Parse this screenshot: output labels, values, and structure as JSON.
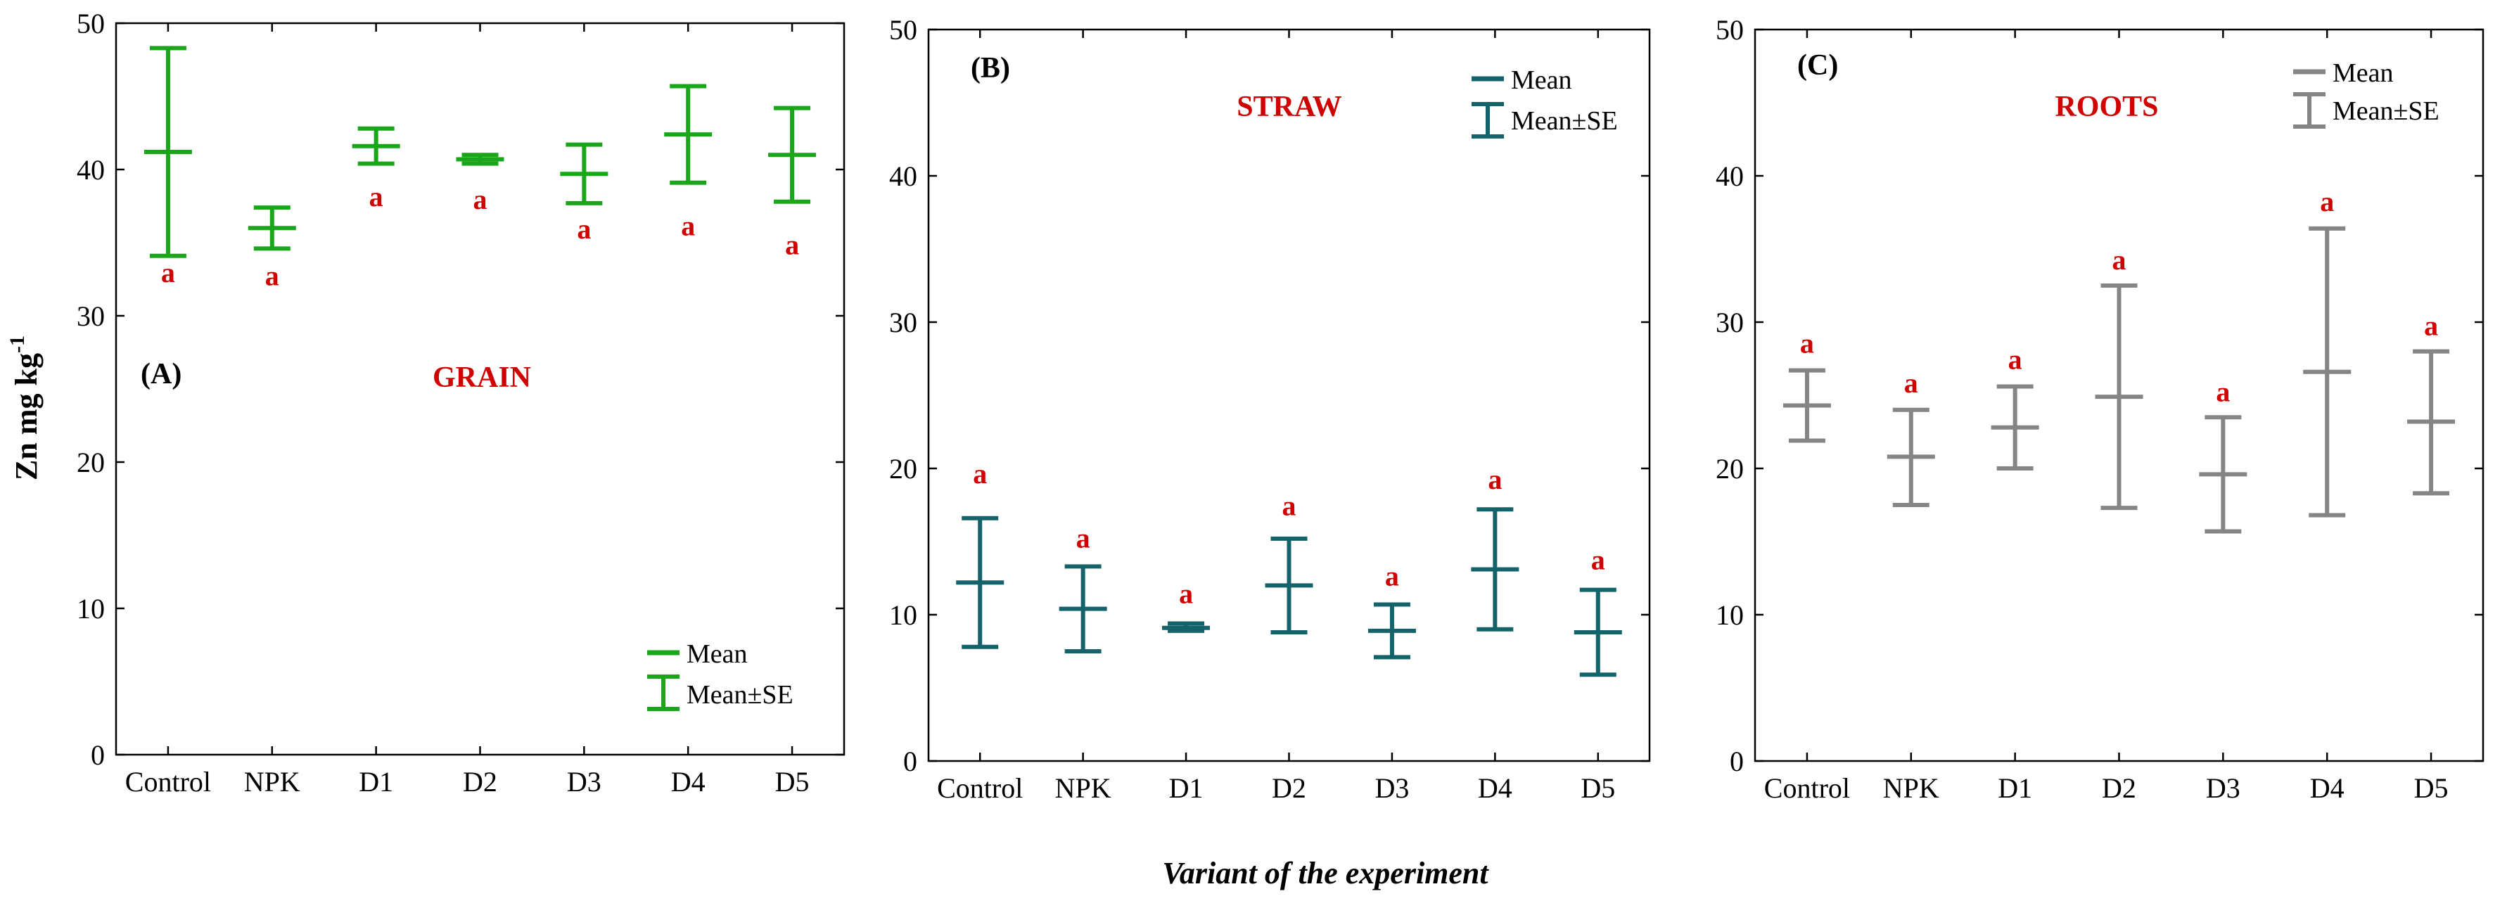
{
  "figure": {
    "ylabel_main": "Zn mg kg",
    "ylabel_sup": "-1",
    "xlabel": "Variant of the experiment"
  },
  "chart_data": [
    {
      "type": "errorbar",
      "panel": "(A)",
      "title": "GRAIN",
      "color": "#1aa51a",
      "categories": [
        "Control",
        "NPK",
        "D1",
        "D2",
        "D3",
        "D4",
        "D5"
      ],
      "mean": [
        41.2,
        36.0,
        41.6,
        40.7,
        39.7,
        42.4,
        41.0
      ],
      "lower": [
        34.1,
        34.6,
        40.4,
        40.4,
        37.7,
        39.1,
        37.8
      ],
      "upper": [
        48.3,
        37.4,
        42.8,
        41.0,
        41.7,
        45.7,
        44.2
      ],
      "letters": [
        "a",
        "a",
        "a",
        "a",
        "a",
        "a",
        "a"
      ],
      "letter_y": [
        32.3,
        32.1,
        37.5,
        37.3,
        35.3,
        35.5,
        34.2
      ],
      "ylim": [
        0,
        50
      ],
      "yticks": [
        "0",
        "10",
        "20",
        "30",
        "40",
        "50"
      ],
      "legend": {
        "mean": "Mean",
        "se": "Mean±SE",
        "position": "bottom-right"
      }
    },
    {
      "type": "errorbar",
      "panel": "(B)",
      "title": "STRAW",
      "color": "#14636b",
      "categories": [
        "Control",
        "NPK",
        "D1",
        "D2",
        "D3",
        "D4",
        "D5"
      ],
      "mean": [
        12.2,
        10.4,
        9.1,
        12.0,
        8.9,
        13.1,
        8.8
      ],
      "lower": [
        7.8,
        7.5,
        8.9,
        8.8,
        7.1,
        9.0,
        5.9
      ],
      "upper": [
        16.6,
        13.3,
        9.4,
        15.2,
        10.7,
        17.2,
        11.7
      ],
      "letters": [
        "a",
        "a",
        "a",
        "a",
        "a",
        "a",
        "a"
      ],
      "letter_y": [
        19.0,
        14.6,
        10.8,
        16.8,
        12.0,
        18.6,
        13.1
      ],
      "ylim": [
        0,
        50
      ],
      "yticks": [
        "0",
        "10",
        "20",
        "30",
        "40",
        "50"
      ],
      "legend": {
        "mean": "Mean",
        "se": "Mean±SE",
        "position": "top-right"
      }
    },
    {
      "type": "errorbar",
      "panel": "(C)",
      "title": "ROOTS",
      "color": "#858585",
      "categories": [
        "Control",
        "NPK",
        "D1",
        "D2",
        "D3",
        "D4",
        "D5"
      ],
      "mean": [
        24.3,
        20.8,
        22.8,
        24.9,
        19.6,
        26.6,
        23.2
      ],
      "lower": [
        21.9,
        17.5,
        20.0,
        17.3,
        15.7,
        16.8,
        18.3
      ],
      "upper": [
        26.7,
        24.0,
        25.6,
        32.5,
        23.5,
        36.4,
        28.0
      ],
      "letters": [
        "a",
        "a",
        "a",
        "a",
        "a",
        "a",
        "a"
      ],
      "letter_y": [
        27.9,
        25.2,
        26.8,
        33.6,
        24.6,
        37.6,
        29.1
      ],
      "ylim": [
        0,
        50
      ],
      "yticks": [
        "0",
        "10",
        "20",
        "30",
        "40",
        "50"
      ],
      "legend": {
        "mean": "Mean",
        "se": "Mean±SE",
        "position": "top-right"
      }
    }
  ]
}
